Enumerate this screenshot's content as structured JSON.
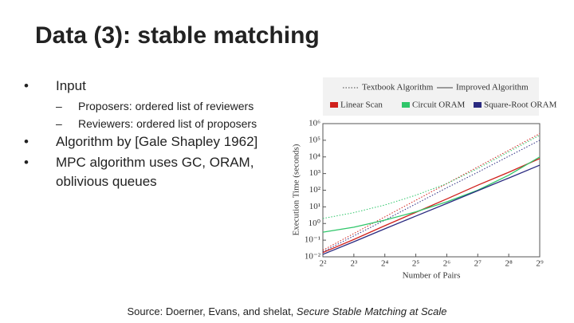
{
  "slide": {
    "title": "Data (3): stable matching",
    "bullets": [
      {
        "text": "Input",
        "sub": [
          "Proposers: ordered list of reviewers",
          "Reviewers: ordered list of proposers"
        ]
      },
      {
        "text": "Algorithm by [Gale Shapley 1962]",
        "sub": []
      },
      {
        "text": "MPC algorithm uses GC, ORAM, oblivious queues",
        "sub": []
      }
    ],
    "source": "Source: Doerner, Evans, and shelat, ",
    "source_title": "Secure Stable Matching at Scale"
  },
  "chart_data": {
    "type": "line",
    "xlabel": "Number of Pairs",
    "ylabel": "Execution Time (seconds)",
    "xscale": "log",
    "yscale": "log",
    "x": [
      4,
      8,
      16,
      32,
      64,
      128,
      256,
      512
    ],
    "xlim": [
      4,
      512
    ],
    "xticks": [
      {
        "value": 4,
        "label": "2²"
      },
      {
        "value": 8,
        "label": "2³"
      },
      {
        "value": 16,
        "label": "2⁴"
      },
      {
        "value": 32,
        "label": "2⁵"
      },
      {
        "value": 64,
        "label": "2⁶"
      },
      {
        "value": 128,
        "label": "2⁷"
      },
      {
        "value": 256,
        "label": "2⁸"
      },
      {
        "value": 512,
        "label": "2⁹"
      }
    ],
    "ylim": [
      0.01,
      1000000
    ],
    "yticks": [
      {
        "value": 0.01,
        "label": "10⁻²"
      },
      {
        "value": 0.1,
        "label": "10⁻¹"
      },
      {
        "value": 1,
        "label": "10⁰"
      },
      {
        "value": 10,
        "label": "10¹"
      },
      {
        "value": 100,
        "label": "10²"
      },
      {
        "value": 1000,
        "label": "10³"
      },
      {
        "value": 10000,
        "label": "10⁴"
      },
      {
        "value": 100000,
        "label": "10⁵"
      },
      {
        "value": 1000000,
        "label": "10⁶"
      }
    ],
    "legend_styles": [
      {
        "label": "Textbook Algorithm",
        "dashed": true
      },
      {
        "label": "Improved Algorithm",
        "dashed": false
      }
    ],
    "legend_colors": [
      {
        "label": "Linear Scan",
        "color": "#d0201c"
      },
      {
        "label": "Circuit ORAM",
        "color": "#2fc66a"
      },
      {
        "label": "Square-Root ORAM",
        "color": "#2a2a80"
      }
    ],
    "series": [
      {
        "color": "#d0201c",
        "dashed": true,
        "values": [
          0.025,
          0.25,
          2.5,
          25,
          250,
          2500,
          25000,
          250000
        ]
      },
      {
        "color": "#2fc66a",
        "dashed": true,
        "values": [
          2,
          4.5,
          13,
          50,
          250,
          2000,
          20000,
          200000
        ]
      },
      {
        "color": "#2a2a80",
        "dashed": true,
        "values": [
          0.02,
          0.18,
          1.6,
          15,
          140,
          1200,
          11000,
          100000
        ]
      },
      {
        "color": "#d0201c",
        "dashed": false,
        "values": [
          0.018,
          0.11,
          0.74,
          4.7,
          30,
          200,
          1200,
          8000
        ]
      },
      {
        "color": "#2fc66a",
        "dashed": false,
        "values": [
          0.3,
          0.6,
          1.6,
          5,
          20,
          100,
          800,
          10000
        ]
      },
      {
        "color": "#2a2a80",
        "dashed": false,
        "values": [
          0.014,
          0.08,
          0.48,
          2.8,
          16,
          93,
          540,
          3200
        ]
      }
    ]
  }
}
